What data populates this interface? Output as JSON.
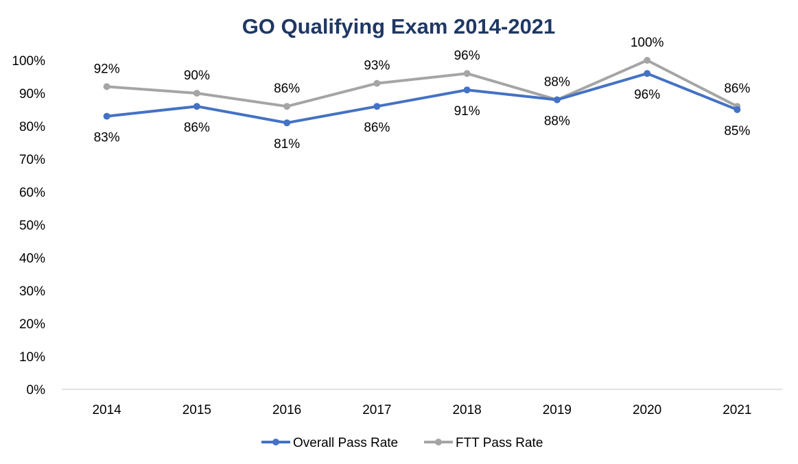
{
  "chart_data": {
    "type": "line",
    "title": "GO Qualifying Exam 2014-2021",
    "xlabel": "",
    "ylabel": "",
    "categories": [
      "2014",
      "2015",
      "2016",
      "2017",
      "2018",
      "2019",
      "2020",
      "2021"
    ],
    "y_ticks": [
      "0%",
      "10%",
      "20%",
      "30%",
      "40%",
      "50%",
      "60%",
      "70%",
      "80%",
      "90%",
      "100%"
    ],
    "ylim": [
      0,
      100
    ],
    "grid": false,
    "legend_position": "bottom",
    "series": [
      {
        "name": "Overall Pass Rate",
        "color": "#4472c4",
        "values": [
          83,
          86,
          81,
          86,
          91,
          88,
          96,
          85
        ],
        "labels": [
          "83%",
          "86%",
          "81%",
          "86%",
          "91%",
          "88%",
          "96%",
          "85%"
        ],
        "label_side": [
          "below",
          "below",
          "below",
          "below",
          "below",
          "below",
          "below",
          "below"
        ]
      },
      {
        "name": "FTT Pass Rate",
        "color": "#a5a5a5",
        "values": [
          92,
          90,
          86,
          93,
          96,
          88,
          100,
          86
        ],
        "labels": [
          "92%",
          "90%",
          "86%",
          "93%",
          "96%",
          "88%",
          "100%",
          "86%"
        ],
        "label_side": [
          "above",
          "above",
          "above",
          "above",
          "above",
          "above",
          "above",
          "above"
        ]
      }
    ]
  }
}
